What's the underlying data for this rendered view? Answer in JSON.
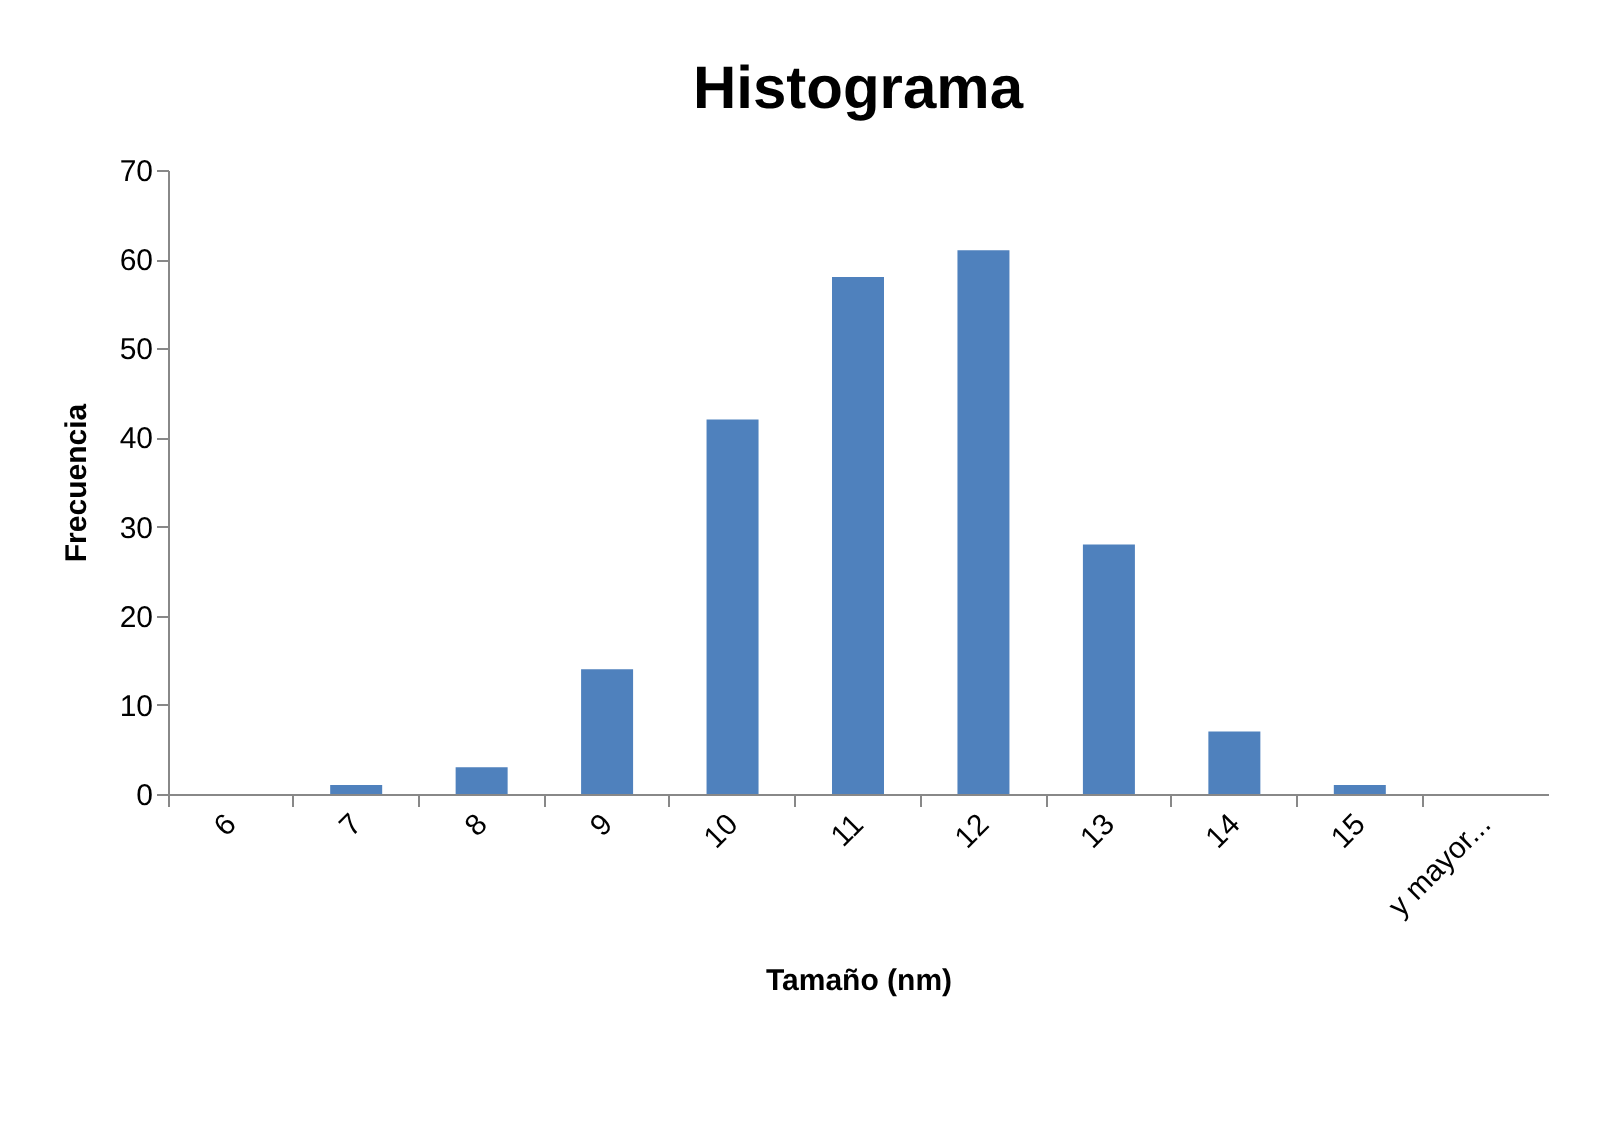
{
  "chart_data": {
    "type": "bar",
    "title": "Histograma",
    "xlabel": "Tamaño (nm)",
    "ylabel": "Frecuencia",
    "categories": [
      "6",
      "7",
      "8",
      "9",
      "10",
      "11",
      "12",
      "13",
      "14",
      "15",
      "y mayor..."
    ],
    "values": [
      0,
      1,
      3,
      14,
      42,
      58,
      61,
      28,
      7,
      1,
      0
    ],
    "color": "#4f81bd",
    "ylim": [
      0,
      70
    ],
    "yticks": [
      0,
      10,
      20,
      30,
      40,
      50,
      60,
      70
    ],
    "grid": false
  }
}
